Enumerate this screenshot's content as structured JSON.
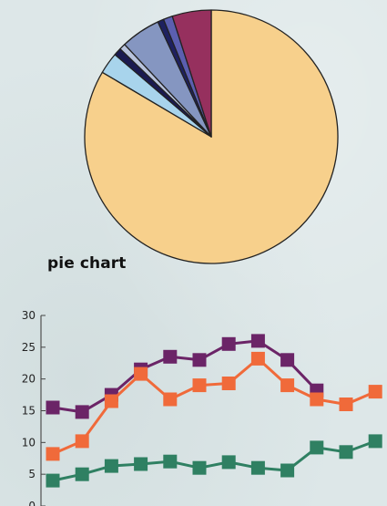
{
  "chart_data": [
    {
      "type": "pie",
      "values": [
        85.5,
        2.8,
        1.0,
        0.8,
        5.2,
        0.8,
        1.2,
        5.1
      ],
      "colors": [
        "#f7d08c",
        "#a8d4ec",
        "#1a1a50",
        "#b8c3dc",
        "#8596c1",
        "#1e2160",
        "#5b5fb0",
        "#96305e"
      ],
      "caption": "pie chart"
    },
    {
      "type": "line",
      "x": [
        1,
        2,
        3,
        4,
        5,
        6,
        7,
        8,
        9,
        10,
        11,
        12
      ],
      "ylim": [
        0,
        30
      ],
      "yticks": [
        0,
        5,
        10,
        15,
        20,
        25,
        30
      ],
      "series": [
        {
          "color": "#6b2467",
          "values": [
            15.5,
            14.8,
            17.5,
            21.5,
            23.5,
            23.0,
            25.5,
            26.0,
            23.0,
            18.2,
            null,
            null
          ]
        },
        {
          "color": "#f06a3a",
          "values": [
            8.2,
            10.2,
            16.5,
            20.8,
            16.8,
            19.0,
            19.3,
            23.2,
            19.0,
            16.8,
            16.0,
            18.0
          ]
        },
        {
          "color": "#2f8062",
          "values": [
            4.0,
            5.0,
            6.3,
            6.6,
            7.0,
            6.0,
            6.9,
            6.0,
            5.6,
            9.2,
            8.5,
            10.2
          ]
        }
      ]
    }
  ]
}
